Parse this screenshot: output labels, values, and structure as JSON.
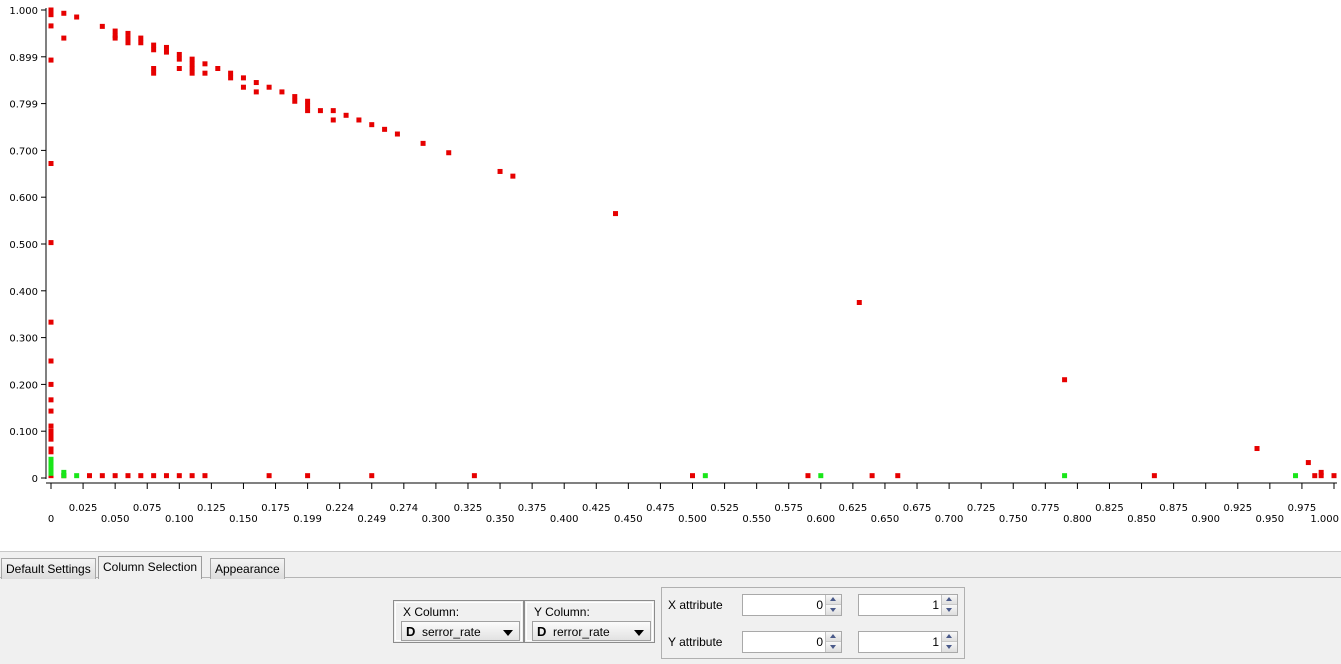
{
  "tabs": [
    {
      "label": "Default Settings",
      "active": false
    },
    {
      "label": "Column Selection",
      "active": true
    },
    {
      "label": "Appearance",
      "active": false
    }
  ],
  "x_column": {
    "title": "X Column:",
    "type_icon": "D",
    "value": "serror_rate"
  },
  "y_column": {
    "title": "Y Column:",
    "type_icon": "D",
    "value": "rerror_rate"
  },
  "attributes": {
    "x": {
      "label": "X attribute",
      "min": "0",
      "max": "1"
    },
    "y": {
      "label": "Y attribute",
      "min": "0",
      "max": "1"
    }
  },
  "colors": {
    "class_a": "#e60000",
    "class_b": "#19e619"
  },
  "chart_data": {
    "type": "scatter",
    "xlabel": "serror_rate",
    "ylabel": "rerror_rate",
    "xlim": [
      0,
      1
    ],
    "ylim": [
      0,
      1
    ],
    "grid": false,
    "x_ticks": [
      "0",
      "0.025",
      "0.050",
      "0.075",
      "0.100",
      "0.125",
      "0.150",
      "0.175",
      "0.199",
      "0.224",
      "0.249",
      "0.274",
      "0.300",
      "0.325",
      "0.350",
      "0.375",
      "0.400",
      "0.425",
      "0.450",
      "0.475",
      "0.500",
      "0.525",
      "0.550",
      "0.575",
      "0.600",
      "0.625",
      "0.650",
      "0.675",
      "0.700",
      "0.725",
      "0.750",
      "0.775",
      "0.800",
      "0.825",
      "0.850",
      "0.875",
      "0.900",
      "0.925",
      "0.950",
      "0.975",
      "1.000"
    ],
    "y_ticks": [
      "0",
      "0.100",
      "0.200",
      "0.300",
      "0.400",
      "0.500",
      "0.600",
      "0.700",
      "0.799",
      "0.899",
      "1.000"
    ],
    "series": [
      {
        "color": "#e60000",
        "points": [
          [
            0,
            1.0
          ],
          [
            0,
            0.995
          ],
          [
            0,
            0.99
          ],
          [
            0,
            0.966
          ],
          [
            0,
            0.893
          ],
          [
            0,
            0.672
          ],
          [
            0,
            0.503
          ],
          [
            0,
            0.333
          ],
          [
            0,
            0.25
          ],
          [
            0,
            0.2
          ],
          [
            0,
            0.167
          ],
          [
            0,
            0.143
          ],
          [
            0,
            0.111
          ],
          [
            0,
            0.1
          ],
          [
            0,
            0.091
          ],
          [
            0,
            0.083
          ],
          [
            0,
            0.062
          ],
          [
            0,
            0.056
          ],
          [
            0,
            0.005
          ],
          [
            0.01,
            0.993
          ],
          [
            0.01,
            0.94
          ],
          [
            0.02,
            0.985
          ],
          [
            0.04,
            0.965
          ],
          [
            0.05,
            0.955
          ],
          [
            0.05,
            0.945
          ],
          [
            0.05,
            0.94
          ],
          [
            0.06,
            0.95
          ],
          [
            0.06,
            0.94
          ],
          [
            0.06,
            0.93
          ],
          [
            0.07,
            0.94
          ],
          [
            0.07,
            0.93
          ],
          [
            0.08,
            0.925
          ],
          [
            0.08,
            0.915
          ],
          [
            0.08,
            0.875
          ],
          [
            0.08,
            0.865
          ],
          [
            0.09,
            0.92
          ],
          [
            0.09,
            0.91
          ],
          [
            0.1,
            0.905
          ],
          [
            0.1,
            0.895
          ],
          [
            0.1,
            0.875
          ],
          [
            0.11,
            0.895
          ],
          [
            0.11,
            0.885
          ],
          [
            0.11,
            0.875
          ],
          [
            0.11,
            0.865
          ],
          [
            0.12,
            0.885
          ],
          [
            0.12,
            0.865
          ],
          [
            0.13,
            0.875
          ],
          [
            0.14,
            0.865
          ],
          [
            0.14,
            0.855
          ],
          [
            0.15,
            0.855
          ],
          [
            0.15,
            0.835
          ],
          [
            0.16,
            0.845
          ],
          [
            0.16,
            0.825
          ],
          [
            0.17,
            0.835
          ],
          [
            0.18,
            0.825
          ],
          [
            0.19,
            0.815
          ],
          [
            0.19,
            0.805
          ],
          [
            0.2,
            0.805
          ],
          [
            0.2,
            0.795
          ],
          [
            0.2,
            0.785
          ],
          [
            0.21,
            0.785
          ],
          [
            0.22,
            0.785
          ],
          [
            0.22,
            0.765
          ],
          [
            0.23,
            0.775
          ],
          [
            0.24,
            0.765
          ],
          [
            0.25,
            0.755
          ],
          [
            0.26,
            0.745
          ],
          [
            0.27,
            0.735
          ],
          [
            0.29,
            0.715
          ],
          [
            0.31,
            0.695
          ],
          [
            0.35,
            0.655
          ],
          [
            0.36,
            0.645
          ],
          [
            0.44,
            0.565
          ],
          [
            0.63,
            0.375
          ],
          [
            0.79,
            0.21
          ],
          [
            0.94,
            0.063
          ],
          [
            0.98,
            0.033
          ],
          [
            0.99,
            0.012
          ],
          [
            0.99,
            0.005
          ],
          [
            0.01,
            0.005
          ],
          [
            0.03,
            0.005
          ],
          [
            0.04,
            0.005
          ],
          [
            0.05,
            0.005
          ],
          [
            0.06,
            0.005
          ],
          [
            0.07,
            0.005
          ],
          [
            0.08,
            0.005
          ],
          [
            0.09,
            0.005
          ],
          [
            0.1,
            0.005
          ],
          [
            0.11,
            0.005
          ],
          [
            0.12,
            0.005
          ],
          [
            0.17,
            0.005
          ],
          [
            0.2,
            0.005
          ],
          [
            0.25,
            0.005
          ],
          [
            0.33,
            0.005
          ],
          [
            0.5,
            0.005
          ],
          [
            0.59,
            0.005
          ],
          [
            0.64,
            0.005
          ],
          [
            0.66,
            0.005
          ],
          [
            0.86,
            0.005
          ],
          [
            0.985,
            0.005
          ],
          [
            1.0,
            0.005
          ]
        ]
      },
      {
        "color": "#19e619",
        "points": [
          [
            0,
            0.04
          ],
          [
            0,
            0.03
          ],
          [
            0,
            0.02
          ],
          [
            0,
            0.01
          ],
          [
            0.01,
            0.012
          ],
          [
            0.01,
            0.005
          ],
          [
            0.02,
            0.005
          ],
          [
            0.51,
            0.005
          ],
          [
            0.6,
            0.005
          ],
          [
            0.79,
            0.005
          ],
          [
            0.97,
            0.005
          ]
        ]
      }
    ]
  }
}
